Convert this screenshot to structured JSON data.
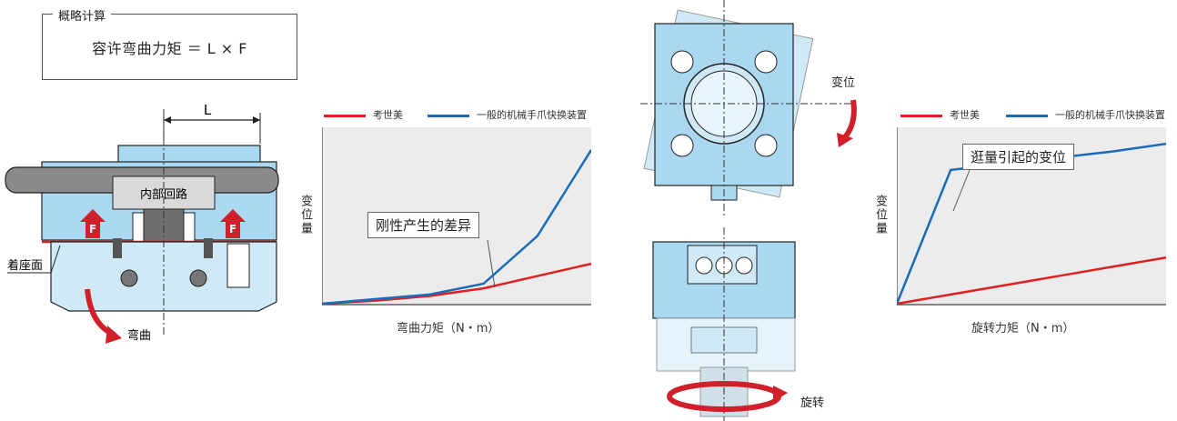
{
  "formula": {
    "legend": "概略计算",
    "text": "容许弯曲力矩 ＝ L × F"
  },
  "left_diagram": {
    "dimension_label": "L",
    "internal_label": "内部回路",
    "force_label": "F",
    "seat_label": "着座面",
    "bend_label": "弯曲"
  },
  "chart_left": {
    "legend": [
      {
        "name": "考世美",
        "color": "#e02020"
      },
      {
        "name": "一般的机械手爪快换装置",
        "color": "#1a6bb8"
      }
    ],
    "ylabel": "变位量",
    "xlabel": "弯曲力矩（N・m）",
    "callout": "刚性产生的差异"
  },
  "middle_diagram": {
    "displacement_label": "变位",
    "rotation_label": "旋转"
  },
  "chart_right": {
    "legend": [
      {
        "name": "考世美",
        "color": "#e02020"
      },
      {
        "name": "一般的机械手爪快换装置",
        "color": "#1a6bb8"
      }
    ],
    "ylabel": "变位量",
    "xlabel": "旋转力矩（N・m）",
    "callout": "逛量引起的变位"
  },
  "chart_data": [
    {
      "type": "line",
      "xlabel": "弯曲力矩（N・m）",
      "ylabel": "变位量",
      "x": [
        0,
        1,
        2,
        3,
        4,
        5
      ],
      "series": [
        {
          "name": "考世美",
          "values": [
            0,
            0.2,
            0.5,
            1.0,
            1.8,
            2.6
          ]
        },
        {
          "name": "一般的机械手爪快换装置",
          "values": [
            0,
            0.3,
            0.6,
            1.3,
            4.4,
            10.0
          ]
        }
      ]
    },
    {
      "type": "line",
      "xlabel": "旋转力矩（N・m）",
      "ylabel": "变位量",
      "x": [
        0,
        1,
        2,
        3,
        4,
        5
      ],
      "series": [
        {
          "name": "考世美",
          "values": [
            0,
            0.6,
            1.2,
            1.8,
            2.4,
            3.0
          ]
        },
        {
          "name": "一般的机械手爪快换装置",
          "values": [
            0,
            8.7,
            9.1,
            9.5,
            9.9,
            10.4
          ]
        }
      ]
    }
  ]
}
